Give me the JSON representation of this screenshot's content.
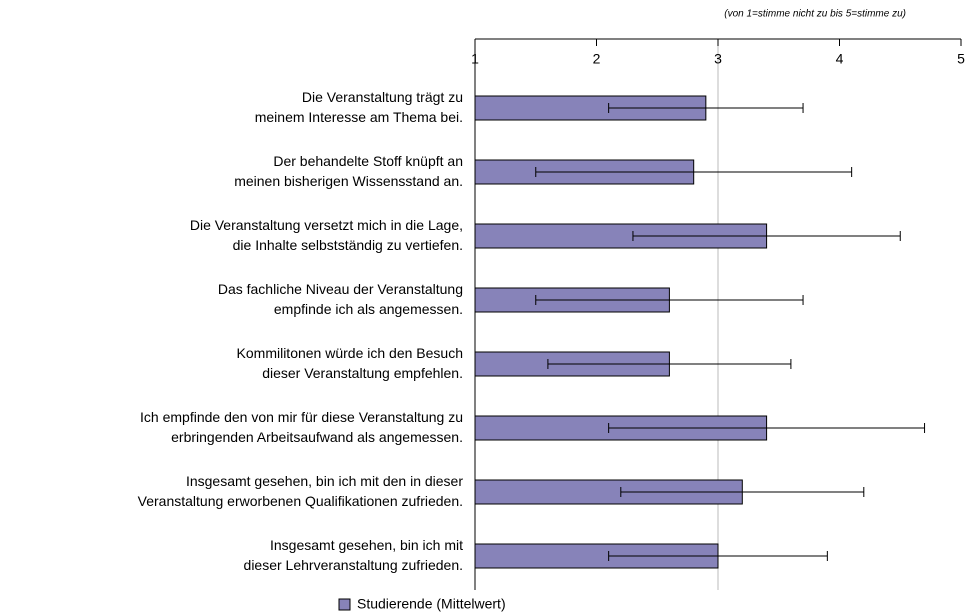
{
  "chart_data": {
    "type": "bar",
    "orientation": "horizontal",
    "subtitle": "(von 1=stimme nicht zu bis  5=stimme zu)",
    "categories": [
      [
        "Die Veranstaltung trägt zu",
        "meinem Interesse am Thema bei."
      ],
      [
        "Der behandelte Stoff knüpft an",
        "meinen bisherigen Wissensstand an."
      ],
      [
        "Die Veranstaltung versetzt mich in die Lage,",
        "die Inhalte selbstständig zu vertiefen."
      ],
      [
        "Das fachliche Niveau der Veranstaltung",
        "empfinde ich als angemessen."
      ],
      [
        "Kommilitonen würde ich den Besuch",
        "dieser Veranstaltung empfehlen."
      ],
      [
        "Ich empfinde den von mir für diese Veranstaltung zu",
        "erbringenden Arbeitsaufwand als angemessen."
      ],
      [
        "Insgesamt gesehen, bin ich mit den in dieser",
        "Veranstaltung erworbenen Qualifikationen zufrieden."
      ],
      [
        "Insgesamt gesehen, bin ich mit",
        "dieser Lehrveranstaltung zufrieden."
      ]
    ],
    "series": [
      {
        "name": "Studierende (Mittelwert)",
        "color": "#8783b9",
        "values": [
          2.9,
          2.8,
          3.4,
          2.6,
          2.6,
          3.4,
          3.2,
          3.0
        ],
        "errors": [
          0.8,
          1.3,
          1.1,
          1.1,
          1.0,
          1.3,
          1.0,
          0.9
        ]
      }
    ],
    "xlim": [
      1,
      5
    ],
    "xticks": [
      1,
      2,
      3,
      4,
      5
    ],
    "reference_line": 3,
    "legend": "bottom"
  }
}
